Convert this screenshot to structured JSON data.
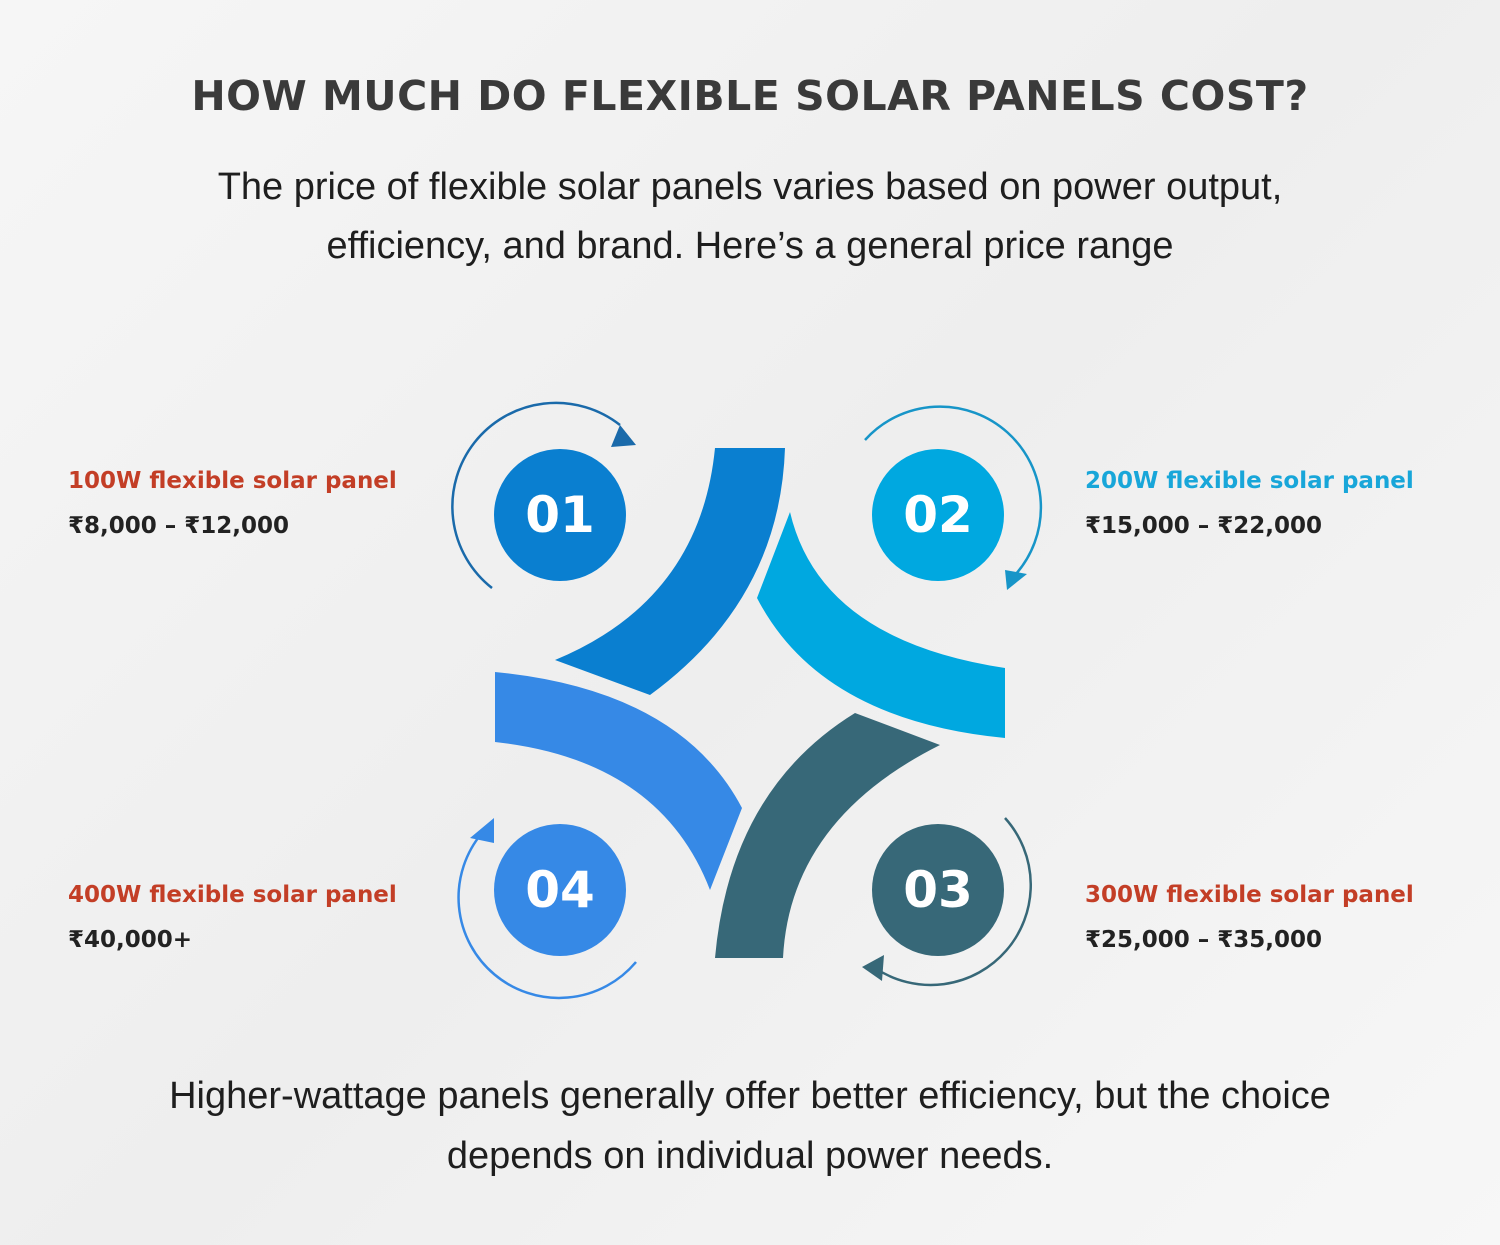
{
  "header": {
    "title": "HOW MUCH DO FLEXIBLE SOLAR PANELS COST?",
    "subtitle_lines": [
      "The price of flexible solar panels varies based on power output,",
      "efficiency, and brand. Here’s a general price range"
    ]
  },
  "items": [
    {
      "number": "01",
      "label": "100W flexible solar panel",
      "price": "₹8,000 – ₹12,000"
    },
    {
      "number": "02",
      "label": "200W flexible solar panel",
      "price": "₹15,000 – ₹22,000"
    },
    {
      "number": "03",
      "label": "300W flexible solar panel",
      "price": "₹25,000 – ₹35,000"
    },
    {
      "number": "04",
      "label": "400W flexible solar panel",
      "price": "₹40,000+"
    }
  ],
  "footer": {
    "lines": [
      "Higher-wattage panels generally offer better efficiency, but the choice",
      "depends on individual power needs."
    ]
  }
}
